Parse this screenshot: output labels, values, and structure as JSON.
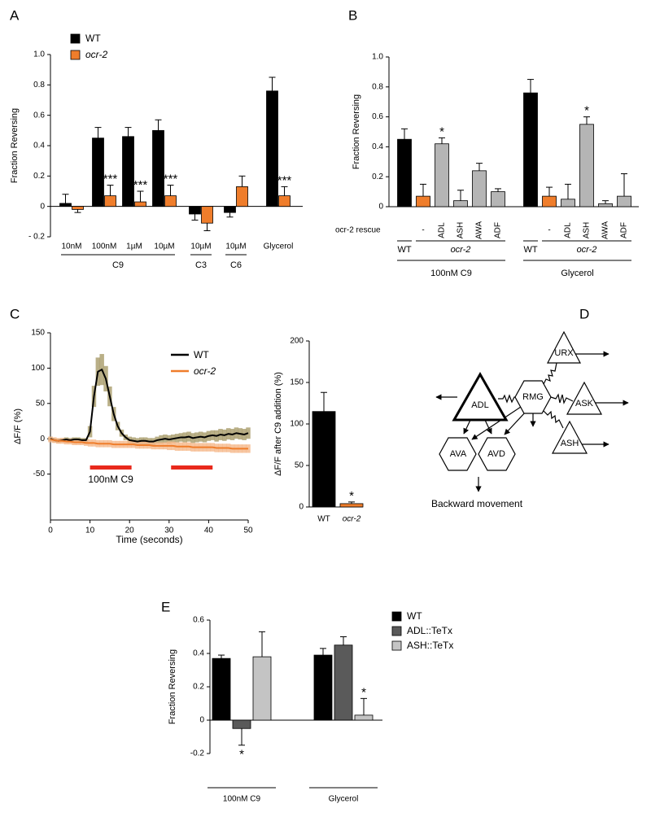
{
  "chart_data": [
    {
      "panel_label": "A",
      "type": "bar",
      "y_label": "Fraction Reversing",
      "categories": [
        "10nM",
        "100nM",
        "1µM",
        "10µM",
        "10µM",
        "10µM",
        "Glycerol"
      ],
      "groups": [
        {
          "label": "C9",
          "size": 4
        },
        {
          "label": "C3",
          "size": 1
        },
        {
          "label": "C6",
          "size": 1
        }
      ],
      "series": [
        {
          "name": "WT",
          "color": "#000000",
          "values": [
            0.02,
            0.45,
            0.46,
            0.5,
            -0.05,
            -0.04,
            0.76
          ],
          "errors": [
            0.06,
            0.07,
            0.06,
            0.07,
            0.04,
            0.03,
            0.09
          ]
        },
        {
          "name": "ocr-2",
          "name_italic": true,
          "color": "#ef7d2b",
          "values": [
            -0.02,
            0.07,
            0.03,
            0.07,
            -0.11,
            0.13,
            0.07
          ],
          "errors": [
            0.02,
            0.07,
            0.07,
            0.07,
            0.05,
            0.07,
            0.06
          ],
          "stars": [
            null,
            "***",
            "***",
            "***",
            null,
            null,
            "***"
          ]
        }
      ],
      "ylim": [
        -0.2,
        1.0
      ],
      "yticks": [
        {
          "value": -0.2,
          "label": "- 0.2"
        },
        0,
        0.2,
        0.4,
        0.6,
        0.8,
        {
          "value": 1.0,
          "label": "1.0"
        }
      ],
      "legend": "upper left"
    },
    {
      "panel_label": "B",
      "type": "bar",
      "y_label": "Fraction Reversing",
      "row_label": "ocr-2 rescue",
      "categories": [
        null,
        "-",
        "ADL",
        "ASH",
        "AWA",
        "ADF",
        null,
        "-",
        "ADL",
        "ASH",
        "AWA",
        "ADF"
      ],
      "values": [
        0.45,
        0.07,
        0.42,
        0.04,
        0.24,
        0.1,
        0.76,
        0.07,
        0.05,
        0.55,
        0.02,
        0.07
      ],
      "errors": [
        0.07,
        0.08,
        0.04,
        0.07,
        0.05,
        0.02,
        0.09,
        0.06,
        0.1,
        0.05,
        0.02,
        0.15
      ],
      "colors": [
        "#000000",
        "#ef7d2b",
        "#b5b5b5",
        "#b5b5b5",
        "#b5b5b5",
        "#b5b5b5",
        "#000000",
        "#ef7d2b",
        "#b5b5b5",
        "#b5b5b5",
        "#b5b5b5",
        "#b5b5b5"
      ],
      "stars": [
        null,
        null,
        "*",
        null,
        null,
        null,
        null,
        null,
        null,
        "*",
        null,
        null
      ],
      "genotypes": [
        {
          "label": "WT",
          "size": 1
        },
        {
          "label": "ocr-2",
          "size": 5,
          "italic": true
        },
        {
          "label": "WT",
          "size": 1
        },
        {
          "label": "ocr-2",
          "size": 5,
          "italic": true
        }
      ],
      "conditions": [
        {
          "label": "100nM C9",
          "size": 6
        },
        {
          "label": "Glycerol",
          "size": 6
        }
      ],
      "ylim": [
        0,
        1.0
      ],
      "yticks": [
        0,
        0.2,
        0.4,
        0.6,
        0.8,
        {
          "value": 1.0,
          "label": "1.0"
        }
      ]
    },
    {
      "panel_label": "C",
      "type": "line",
      "y_label": "ΔF/F (%)",
      "x_label": "Time (seconds)",
      "x": [
        0,
        1,
        2,
        3,
        4,
        5,
        6,
        7,
        8,
        9,
        10,
        11,
        12,
        13,
        14,
        15,
        16,
        17,
        18,
        19,
        20,
        21,
        22,
        23,
        24,
        25,
        26,
        27,
        28,
        29,
        30,
        31,
        32,
        33,
        34,
        35,
        36,
        37,
        38,
        39,
        40,
        41,
        42,
        43,
        44,
        45,
        46,
        47,
        48,
        49,
        50
      ],
      "series": [
        {
          "name": "WT",
          "color": "#000000",
          "band_color": "#a89c6a",
          "values": [
            0,
            -2,
            -3,
            -2,
            -1,
            -2,
            -1,
            -1,
            -2,
            -2,
            10,
            60,
            95,
            98,
            85,
            60,
            35,
            18,
            8,
            2,
            -2,
            -3,
            -4,
            -3,
            -3,
            -4,
            -4,
            -2,
            -1,
            0,
            -1,
            0,
            1,
            2,
            2,
            3,
            1,
            2,
            3,
            2,
            4,
            5,
            4,
            6,
            5,
            7,
            6,
            8,
            7,
            6,
            8
          ],
          "errors": [
            3,
            3,
            3,
            3,
            3,
            3,
            3,
            3,
            3,
            3,
            8,
            15,
            20,
            22,
            18,
            14,
            10,
            6,
            5,
            4,
            5,
            5,
            5,
            5,
            5,
            5,
            5,
            5,
            6,
            6,
            6,
            6,
            6,
            6,
            7,
            7,
            7,
            7,
            7,
            7,
            7,
            7,
            8,
            8,
            8,
            8,
            8,
            8,
            8,
            8,
            8
          ]
        },
        {
          "name": "ocr-2",
          "name_italic": true,
          "color": "#ef7d2b",
          "band_color": "#f6b88a",
          "values": [
            -1,
            -2,
            -3,
            -3,
            -4,
            -4,
            -5,
            -5,
            -5,
            -6,
            -6,
            -6,
            -7,
            -7,
            -7,
            -7,
            -8,
            -8,
            -8,
            -8,
            -8,
            -8,
            -9,
            -9,
            -9,
            -9,
            -10,
            -10,
            -10,
            -10,
            -10,
            -10,
            -11,
            -11,
            -11,
            -11,
            -12,
            -12,
            -12,
            -12,
            -12,
            -12,
            -13,
            -13,
            -13,
            -13,
            -14,
            -14,
            -14,
            -14,
            -14
          ],
          "errors": [
            4,
            4,
            4,
            4,
            4,
            4,
            4,
            4,
            4,
            4,
            5,
            5,
            5,
            5,
            5,
            5,
            5,
            5,
            5,
            5,
            5,
            5,
            5,
            5,
            5,
            5,
            5,
            5,
            5,
            5,
            6,
            6,
            6,
            6,
            6,
            6,
            6,
            6,
            6,
            6,
            6,
            6,
            6,
            6,
            6,
            6,
            6,
            6,
            6,
            6,
            6
          ]
        }
      ],
      "stimuli": [
        {
          "start": 10,
          "end": 20.5,
          "label": "100nM C9"
        },
        {
          "start": 30.5,
          "end": 41
        }
      ],
      "stimulus_color": "#e8291c",
      "xlim": [
        0,
        50
      ],
      "xticks": [
        0,
        10,
        20,
        30,
        40,
        50
      ],
      "ylim": [
        -115,
        150
      ],
      "yticks": [
        -50,
        0,
        50,
        100,
        150
      ],
      "legend": "upper right"
    },
    {
      "type": "bar",
      "y_label": "ΔF/F after C9 addition (%)",
      "categories": [
        "WT",
        "ocr-2"
      ],
      "categories_italic": [
        false,
        true
      ],
      "values": [
        115,
        4
      ],
      "errors": [
        23,
        2
      ],
      "colors": [
        "#000000",
        "#ef7d2b"
      ],
      "stars": [
        null,
        "*"
      ],
      "ylim": [
        0,
        200
      ],
      "yticks": [
        0,
        50,
        100,
        150,
        200
      ]
    },
    {
      "panel_label": "E",
      "type": "bar",
      "y_label": "Fraction Reversing",
      "categories": [
        "100nM C9",
        "Glycerol"
      ],
      "series": [
        {
          "name": "WT",
          "color": "#000000",
          "values": [
            0.37,
            0.39
          ],
          "errors": [
            0.02,
            0.04
          ]
        },
        {
          "name": "ADL::TeTx",
          "color": "#5a5a5a",
          "values": [
            -0.05,
            0.45
          ],
          "errors": [
            0.1,
            0.05
          ],
          "stars": [
            "*",
            null
          ]
        },
        {
          "name": "ASH::TeTx",
          "color": "#c4c4c4",
          "values": [
            0.38,
            0.03
          ],
          "errors": [
            0.15,
            0.1
          ],
          "stars": [
            null,
            "*"
          ]
        }
      ],
      "ylim": [
        -0.2,
        0.6
      ],
      "yticks": [
        -0.2,
        0,
        0.2,
        0.4,
        0.6
      ],
      "legend": "upper right"
    }
  ],
  "diagram": {
    "panel_label": "D",
    "nodes": [
      "ADL",
      "RMG",
      "URX",
      "ASK",
      "ASH",
      "AVA",
      "AVD"
    ],
    "output_label": "Backward movement"
  }
}
